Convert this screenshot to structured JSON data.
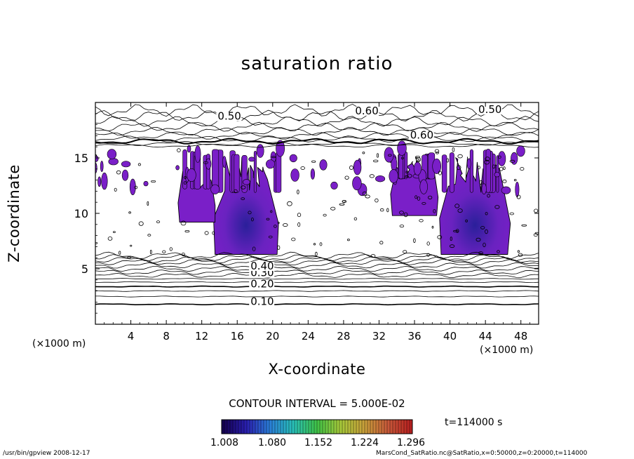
{
  "chart_data": {
    "type": "heatmap",
    "title": "saturation ratio",
    "xlabel": "X-coordinate",
    "ylabel": "Z-coordinate",
    "x_unit": "(×1000 m)",
    "x_unit_right": "(×1000 m)",
    "xlim": [
      0,
      50
    ],
    "ylim": [
      0,
      20
    ],
    "xticks": [
      4,
      8,
      12,
      16,
      20,
      24,
      28,
      32,
      36,
      40,
      44,
      48
    ],
    "yticks": [
      5,
      10,
      15
    ],
    "contour_interval": "CONTOUR INTERVAL = 5.000E-02",
    "contour_labels": [
      {
        "text": "0.10",
        "x": 17.5,
        "z": 1.8
      },
      {
        "text": "0.20",
        "x": 17.5,
        "z": 3.4
      },
      {
        "text": "0.30",
        "x": 17.5,
        "z": 4.4
      },
      {
        "text": "0.40",
        "x": 17.5,
        "z": 5.0
      },
      {
        "text": "0.50",
        "x": 13.8,
        "z": 18.5
      },
      {
        "text": "0.60",
        "x": 29.3,
        "z": 19.0
      },
      {
        "text": "0.50",
        "x": 43.2,
        "z": 19.1
      },
      {
        "text": "0.60",
        "x": 35.5,
        "z": 16.8
      }
    ],
    "colorbar": {
      "ticks": [
        "1.008",
        "1.080",
        "1.152",
        "1.224",
        "1.296"
      ],
      "colors": [
        "#140050",
        "#2a1fb0",
        "#2a7fd8",
        "#29c0b8",
        "#3fc246",
        "#a7c93a",
        "#c8a03a",
        "#c85a3a",
        "#b82020"
      ]
    },
    "supersaturated_regions": [
      {
        "x": [
          13.5,
          20.5
        ],
        "z": [
          6.3,
          15.6
        ],
        "peak": 1.1
      },
      {
        "x": [
          39,
          46.5
        ],
        "z": [
          6.3,
          15.6
        ],
        "peak": 1.12
      },
      {
        "x": [
          9.5,
          13.5
        ],
        "z": [
          9.2,
          14.2
        ],
        "peak": 1.03
      },
      {
        "x": [
          33.5,
          38.5
        ],
        "z": [
          9.8,
          15.3
        ],
        "peak": 1.03
      }
    ],
    "colors": {
      "fill": "#7a1fc8",
      "fill_core": "#3a1fa8"
    }
  },
  "time_label": "t=114000 s",
  "footer": {
    "left": "/usr/bin/gpview   2008-12-17",
    "right": "MarsCond_SatRatio.nc@SatRatio,x=0:50000,z=0:20000,t=114000"
  }
}
